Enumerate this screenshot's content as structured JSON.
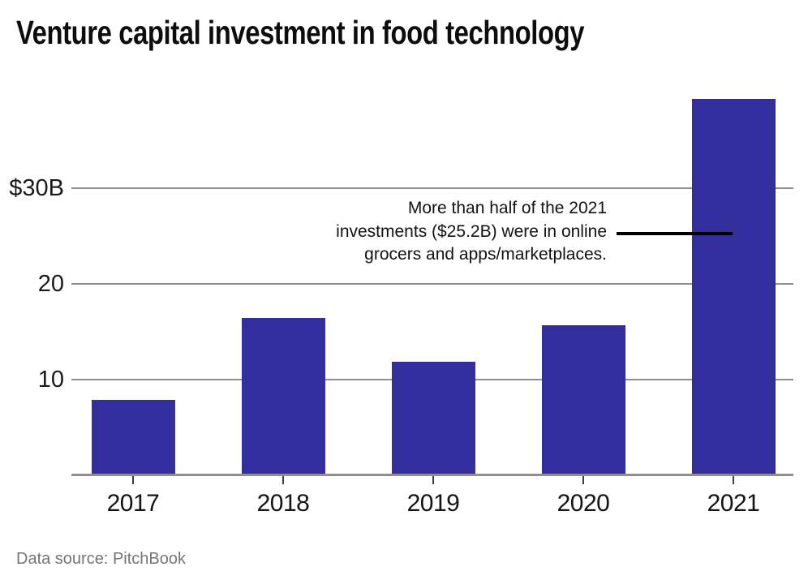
{
  "title": "Venture capital investment in food technology",
  "annotation": {
    "lines": [
      "More than half of the 2021",
      "investments ($25.2B) were in online",
      "grocers and apps/marketplaces."
    ]
  },
  "source": "Data source: PitchBook",
  "colors": {
    "bar": "#332e9d",
    "gridline": "#8f8f8f",
    "leader_line": "#000000",
    "source_text": "#757575"
  },
  "chart_data": {
    "type": "bar",
    "title": "Venture capital investment in food technology",
    "categories": [
      "2017",
      "2018",
      "2019",
      "2020",
      "2021"
    ],
    "values": [
      7.8,
      16.4,
      11.8,
      15.6,
      39.3
    ],
    "unit": "USD billions",
    "xlabel": "",
    "ylabel": "",
    "ylim": [
      0,
      40
    ],
    "yticks": [
      {
        "value": 10,
        "label": "10"
      },
      {
        "value": 20,
        "label": "20"
      },
      {
        "value": 30,
        "label": "$30B"
      }
    ],
    "grid": "horizontal",
    "legend": "none",
    "bar_color": "#332e9d",
    "annotation_text": "More than half of the 2021 investments ($25.2B) were in online grocers and apps/marketplaces.",
    "annotation_target_category": "2021",
    "source": "Data source: PitchBook"
  }
}
